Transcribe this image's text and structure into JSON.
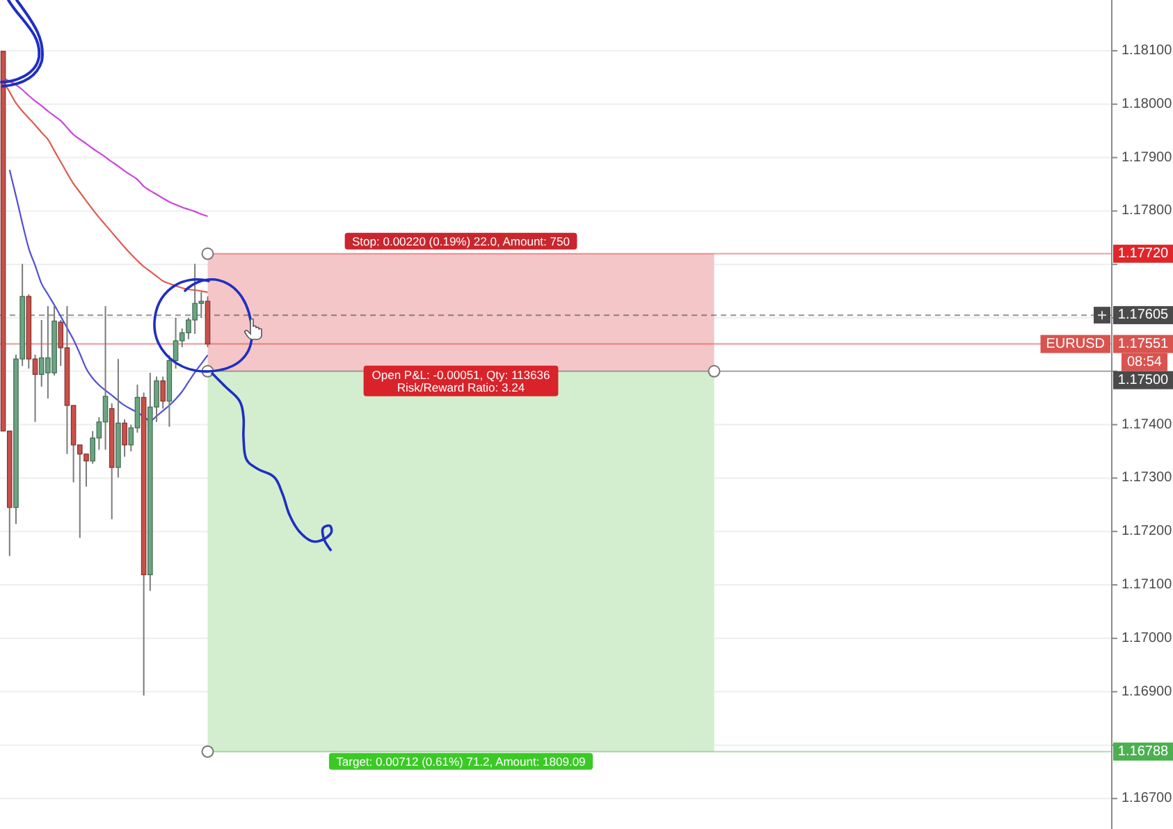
{
  "chart_data": {
    "type": "candlestick",
    "categories": [
      null,
      null,
      null,
      null,
      null,
      null,
      null,
      null,
      null,
      null,
      null,
      null,
      null,
      null,
      null,
      null,
      null,
      null,
      null,
      null,
      null,
      null,
      null,
      null,
      null,
      null,
      null,
      null,
      null,
      null,
      null,
      null,
      null,
      null,
      null,
      null,
      null,
      null,
      null,
      null,
      null,
      null,
      null,
      null,
      null,
      null,
      null,
      null,
      null,
      null,
      null,
      null,
      null,
      null,
      null,
      null,
      null,
      null,
      null,
      null,
      null,
      null,
      null,
      null,
      null,
      null,
      null,
      null,
      null,
      null,
      null,
      null,
      null,
      null,
      null,
      null,
      null,
      null,
      null,
      null,
      null,
      null,
      null,
      null,
      null,
      null,
      null,
      null,
      null,
      null,
      null,
      null,
      null,
      null,
      null,
      null,
      null,
      null,
      null,
      null,
      null,
      null,
      null,
      null,
      null,
      null,
      null,
      null,
      null,
      null,
      null,
      null,
      null,
      null,
      null,
      null,
      null,
      null,
      null,
      null,
      null,
      null,
      null,
      null,
      null,
      null,
      null,
      null,
      null,
      null,
      null,
      null,
      null,
      null,
      null,
      null,
      null,
      null,
      null,
      null,
      null,
      null,
      null,
      null,
      null,
      null,
      null,
      null,
      null,
      null,
      null,
      null,
      null,
      null,
      null,
      null,
      null,
      null,
      null,
      null,
      null,
      null,
      null,
      null,
      null,
      null,
      null,
      null,
      null,
      null,
      null,
      null,
      null,
      null
    ],
    "ohlc": [
      [
        1.18099,
        1.18099,
        1.17388,
        1.17388
      ],
      [
        1.17388,
        1.17388,
        1.17154,
        1.17245
      ],
      [
        1.17245,
        1.17531,
        1.17214,
        1.17523
      ],
      [
        1.17523,
        1.17701,
        1.1751,
        1.1764
      ],
      [
        1.1764,
        1.17644,
        1.17505,
        1.17523
      ],
      [
        1.17523,
        1.17531,
        1.17405,
        1.17494
      ],
      [
        1.17494,
        1.17596,
        1.17471,
        1.17525
      ],
      [
        1.17497,
        1.17622,
        1.17449,
        1.17525
      ],
      [
        1.17497,
        1.17622,
        1.17492,
        1.17594
      ],
      [
        1.17592,
        1.17596,
        1.1751,
        1.17544
      ],
      [
        1.17544,
        1.17622,
        1.17345,
        1.17436
      ],
      [
        1.17436,
        1.17436,
        1.17292,
        1.17362
      ],
      [
        1.17362,
        1.17362,
        1.17188,
        1.17345
      ],
      [
        1.17345,
        1.17345,
        1.17284,
        1.17332
      ],
      [
        1.17332,
        1.17388,
        1.17327,
        1.17375
      ],
      [
        1.17375,
        1.17414,
        1.17353,
        1.17405
      ],
      [
        1.17405,
        1.17622,
        1.17353,
        1.17453
      ],
      [
        1.1743,
        1.1744,
        1.17223,
        1.1732
      ],
      [
        1.1732,
        1.17523,
        1.17301,
        1.17403
      ],
      [
        1.17403,
        1.1741,
        1.1734,
        1.17362
      ],
      [
        1.17362,
        1.174,
        1.1735,
        1.17394
      ],
      [
        1.17394,
        1.17475,
        1.17385,
        1.17451
      ],
      [
        1.17451,
        1.1746,
        1.16893,
        1.17119
      ],
      [
        1.17119,
        1.17497,
        1.17089,
        1.17433
      ],
      [
        1.17433,
        1.1749,
        1.17405,
        1.17482
      ],
      [
        1.17482,
        1.1749,
        1.1743,
        1.17444
      ],
      [
        1.17444,
        1.1753,
        1.17396,
        1.1752
      ],
      [
        1.1752,
        1.176,
        1.17505,
        1.17557
      ],
      [
        1.17557,
        1.1758,
        1.17545,
        1.17572
      ],
      [
        1.17572,
        1.176,
        1.1756,
        1.17596
      ],
      [
        1.17596,
        1.17701,
        1.1757,
        1.17627
      ],
      [
        1.17627,
        1.17648,
        1.176,
        1.17631
      ],
      [
        1.17631,
        1.1764,
        1.17545,
        1.17551
      ],
      null,
      null,
      null,
      null,
      null,
      null,
      null,
      null,
      null,
      null,
      null,
      null,
      null,
      null,
      null,
      null,
      null,
      null,
      null,
      null,
      null,
      null,
      null,
      null,
      null,
      null,
      null,
      null,
      null,
      null,
      null,
      null,
      null,
      null,
      null,
      null,
      null,
      null,
      null,
      null,
      null,
      null,
      null,
      null,
      null,
      null,
      null,
      null,
      null,
      null,
      null,
      null,
      null,
      null,
      null,
      null,
      null,
      null,
      null,
      null,
      null,
      null,
      null,
      null,
      null,
      null,
      null,
      null,
      null,
      null,
      null,
      null,
      null,
      null,
      null,
      null,
      null,
      null,
      null,
      null,
      null,
      null,
      null,
      null,
      null,
      null,
      null,
      null,
      null,
      null,
      null,
      null,
      null,
      null,
      null,
      null,
      null,
      null,
      null,
      null,
      null,
      null,
      null,
      null,
      null,
      null,
      null,
      null,
      null,
      null,
      null,
      null,
      null,
      null,
      null,
      null,
      null,
      null,
      null,
      null,
      null,
      null,
      null,
      null,
      null,
      null,
      null,
      null,
      null,
      null,
      null,
      null,
      null,
      null,
      null,
      null,
      null,
      null,
      null,
      null,
      null
    ],
    "colors": [
      "#c9504a",
      "#c9504a",
      "#6ba583",
      "#6ba583",
      "#c9504a",
      "#c9504a",
      "#6ba583",
      "#6ba583",
      "#6ba583",
      "#c9504a",
      "#c9504a",
      "#c9504a",
      "#c9504a",
      "#c9504a",
      "#6ba583",
      "#6ba583",
      "#6ba583",
      "#c9504a",
      "#6ba583",
      "#c9504a",
      "#6ba583",
      "#6ba583",
      "#c9504a",
      "#6ba583",
      "#6ba583",
      "#c9504a",
      "#6ba583",
      "#6ba583",
      "#6ba583",
      "#6ba583",
      "#6ba583",
      "#6ba583",
      "#c9504a",
      null,
      null,
      null,
      null,
      null,
      null,
      null,
      null,
      null,
      null,
      null,
      null,
      null,
      null,
      null,
      null,
      null,
      null,
      null,
      null,
      null,
      null,
      null,
      null,
      null,
      null,
      null,
      null,
      null,
      null,
      null,
      null,
      null,
      null,
      null,
      null,
      null,
      null,
      null,
      null,
      null,
      null,
      null,
      null,
      null,
      null,
      null,
      null,
      null,
      null,
      null,
      null,
      null,
      null,
      null,
      null,
      null,
      null,
      null,
      null,
      null,
      null,
      null,
      null,
      null,
      null,
      null,
      null,
      null,
      null,
      null,
      null,
      null,
      null,
      null,
      null,
      null,
      null,
      null,
      null,
      null,
      null,
      null,
      null,
      null,
      null,
      null,
      null,
      null,
      null,
      null,
      null,
      null,
      null,
      null,
      null,
      null,
      null,
      null,
      null,
      null,
      null,
      null,
      null,
      null,
      null,
      null,
      null,
      null,
      null,
      null,
      null,
      null,
      null,
      null,
      null,
      null,
      null,
      null,
      null,
      null,
      null,
      null,
      null,
      null,
      null,
      null,
      null,
      null,
      null,
      null,
      null,
      null,
      null,
      null,
      null,
      null,
      null,
      null,
      null,
      null
    ],
    "series": [
      {
        "type": "line",
        "color": "#cc44dd",
        "values": [
          1.18049,
          1.18043,
          1.18036,
          1.18027,
          1.18016,
          1.18006,
          1.17997,
          1.17987,
          1.17978,
          1.17969,
          1.17956,
          1.17943,
          1.17934,
          1.17926,
          1.17917,
          1.17909,
          1.17901,
          1.17892,
          1.17884,
          1.17875,
          1.17867,
          1.17859,
          1.17846,
          1.17838,
          1.17831,
          1.17824,
          1.17817,
          1.17812,
          1.17807,
          1.17803,
          1.17799,
          1.17794,
          1.1779,
          null,
          null,
          null,
          null,
          null,
          null,
          null,
          null,
          null,
          null,
          null,
          null,
          null,
          null,
          null,
          null,
          null,
          null,
          null,
          null,
          null,
          null,
          null,
          null,
          null,
          null,
          null,
          null,
          null,
          null,
          null,
          null,
          null,
          null,
          null,
          null,
          null,
          null,
          null,
          null,
          null,
          null,
          null,
          null,
          null,
          null,
          null,
          null,
          null,
          null,
          null,
          null,
          null,
          null,
          null,
          null,
          null,
          null,
          null,
          null,
          null,
          null,
          null,
          null,
          null,
          null,
          null,
          null,
          null,
          null,
          null,
          null,
          null,
          null,
          null,
          null,
          null,
          null,
          null,
          null,
          null,
          null,
          null,
          null,
          null,
          null,
          null,
          null,
          null,
          null,
          null,
          null,
          null,
          null,
          null,
          null,
          null,
          null,
          null,
          null,
          null,
          null,
          null,
          null,
          null,
          null,
          null,
          null,
          null,
          null,
          null,
          null,
          null,
          null,
          null,
          null,
          null,
          null,
          null,
          null,
          null,
          null,
          null,
          null,
          null,
          null,
          null,
          null,
          null,
          null,
          null,
          null,
          null,
          null,
          null,
          null,
          null,
          null,
          null,
          null,
          null
        ]
      },
      {
        "type": "line",
        "color": "#e05a50",
        "values": [
          1.18043,
          1.18023,
          1.18002,
          1.17987,
          1.17974,
          1.17961,
          1.17947,
          1.17934,
          1.17913,
          1.17892,
          1.17871,
          1.17851,
          1.17835,
          1.17819,
          1.17803,
          1.17788,
          1.17774,
          1.1776,
          1.17746,
          1.17732,
          1.17719,
          1.17707,
          1.17696,
          1.17687,
          1.17678,
          1.17669,
          1.17664,
          1.1766,
          1.17656,
          1.17653,
          1.17652,
          1.1765,
          1.17648,
          null,
          null,
          null,
          null,
          null,
          null,
          null,
          null,
          null,
          null,
          null,
          null,
          null,
          null,
          null,
          null,
          null,
          null,
          null,
          null,
          null,
          null,
          null,
          null,
          null,
          null,
          null,
          null,
          null,
          null,
          null,
          null,
          null,
          null,
          null,
          null,
          null,
          null,
          null,
          null,
          null,
          null,
          null,
          null,
          null,
          null,
          null,
          null,
          null,
          null,
          null,
          null,
          null,
          null,
          null,
          null,
          null,
          null,
          null,
          null,
          null,
          null,
          null,
          null,
          null,
          null,
          null,
          null,
          null,
          null,
          null,
          null,
          null,
          null,
          null,
          null,
          null,
          null,
          null,
          null,
          null,
          null,
          null,
          null,
          null,
          null,
          null,
          null,
          null,
          null,
          null,
          null,
          null,
          null,
          null,
          null,
          null,
          null,
          null,
          null,
          null,
          null,
          null,
          null,
          null,
          null,
          null,
          null,
          null,
          null,
          null,
          null,
          null,
          null,
          null,
          null,
          null,
          null,
          null,
          null,
          null,
          null,
          null,
          null,
          null,
          null,
          null,
          null,
          null,
          null,
          null,
          null,
          null,
          null,
          null,
          null,
          null,
          null,
          null,
          null,
          null
        ]
      },
      {
        "type": "line",
        "color": "#5050d8",
        "values": [
          null,
          1.17877,
          1.17828,
          1.17777,
          1.1773,
          1.17698,
          1.17664,
          1.17644,
          1.17624,
          1.17603,
          1.17581,
          1.17559,
          1.17533,
          1.17505,
          1.17487,
          1.17474,
          1.17464,
          1.17455,
          1.17445,
          1.17436,
          1.17429,
          1.17423,
          1.17415,
          1.17407,
          1.17416,
          1.17426,
          1.17436,
          1.17448,
          1.17462,
          1.1748,
          1.17498,
          1.17514,
          1.1753,
          null,
          null,
          null,
          null,
          null,
          null,
          null,
          null,
          null,
          null,
          null,
          null,
          null,
          null,
          null,
          null,
          null,
          null,
          null,
          null,
          null,
          null,
          null,
          null,
          null,
          null,
          null,
          null,
          null,
          null,
          null,
          null,
          null,
          null,
          null,
          null,
          null,
          null,
          null,
          null,
          null,
          null,
          null,
          null,
          null,
          null,
          null,
          null,
          null,
          null,
          null,
          null,
          null,
          null,
          null,
          null,
          null,
          null,
          null,
          null,
          null,
          null,
          null,
          null,
          null,
          null,
          null,
          null,
          null,
          null,
          null,
          null,
          null,
          null,
          null,
          null,
          null,
          null,
          null,
          null,
          null,
          null,
          null,
          null,
          null,
          null,
          null,
          null,
          null,
          null,
          null,
          null,
          null,
          null,
          null,
          null,
          null,
          null,
          null,
          null,
          null,
          null,
          null,
          null,
          null,
          null,
          null,
          null,
          null,
          null,
          null,
          null,
          null,
          null,
          null,
          null,
          null,
          null,
          null,
          null,
          null,
          null,
          null,
          null,
          null,
          null,
          null,
          null,
          null,
          null,
          null,
          null,
          null,
          null,
          null,
          null,
          null,
          null,
          null,
          null,
          null
        ]
      }
    ],
    "ylim": [
      1.16643,
      1.18195
    ],
    "yticks": [
      {
        "value": 1.181,
        "label": "1.18100"
      },
      {
        "value": 1.18,
        "label": "1.18000"
      },
      {
        "value": 1.179,
        "label": "1.17900"
      },
      {
        "value": 1.178,
        "label": "1.17800"
      },
      {
        "value": 1.177,
        "label": null
      },
      {
        "value": 1.176,
        "label": null
      },
      {
        "value": 1.175,
        "label": null
      },
      {
        "value": 1.174,
        "label": "1.17400"
      },
      {
        "value": 1.173,
        "label": "1.17300"
      },
      {
        "value": 1.172,
        "label": "1.17200"
      },
      {
        "value": 1.171,
        "label": "1.17100"
      },
      {
        "value": 1.17,
        "label": "1.17000"
      },
      {
        "value": 1.169,
        "label": "1.16900"
      },
      {
        "value": 1.168,
        "label": null
      },
      {
        "value": 1.167,
        "label": "1.16700"
      }
    ],
    "grid": "y",
    "tick_labels": "y",
    "bands": [
      {
        "axis": "y",
        "from": 1.175,
        "to": 1.1772,
        "label": "Stop: 0.00220 (0.19%) 22.0, Amount: 750",
        "color": "#f4c6c8"
      },
      {
        "axis": "y",
        "from": 1.16788,
        "to": 1.175,
        "label": "Target: 0.00712 (0.61%) 71.2, Amount: 1809.09",
        "color": "#d3eecf"
      }
    ],
    "ref_lines": [
      {
        "axis": "y",
        "value": 1.1772,
        "label": "1.17720",
        "color": "#e0252b"
      },
      {
        "axis": "y",
        "value": 1.17605,
        "label": "1.17605",
        "color": "#4a4a4a",
        "line_style": "dashed"
      },
      {
        "axis": "y",
        "value": 1.17551,
        "label": "1.17551",
        "color": "#d9534f",
        "line_style": "solid"
      },
      {
        "axis": "y",
        "value": 1.175,
        "label": "1.17500",
        "color": "#4a4a4a"
      },
      {
        "axis": "y",
        "value": 1.16788,
        "label": "1.16788",
        "color": "#4caf50"
      }
    ],
    "annotations": [
      "Open P&L: -0.00051, Qty: 113636",
      "Risk/Reward Ratio: 3.24",
      {
        "text": "EURUSD",
        "y": 1.17551
      },
      {
        "text": "08:54",
        "y": 1.17551
      }
    ]
  }
}
